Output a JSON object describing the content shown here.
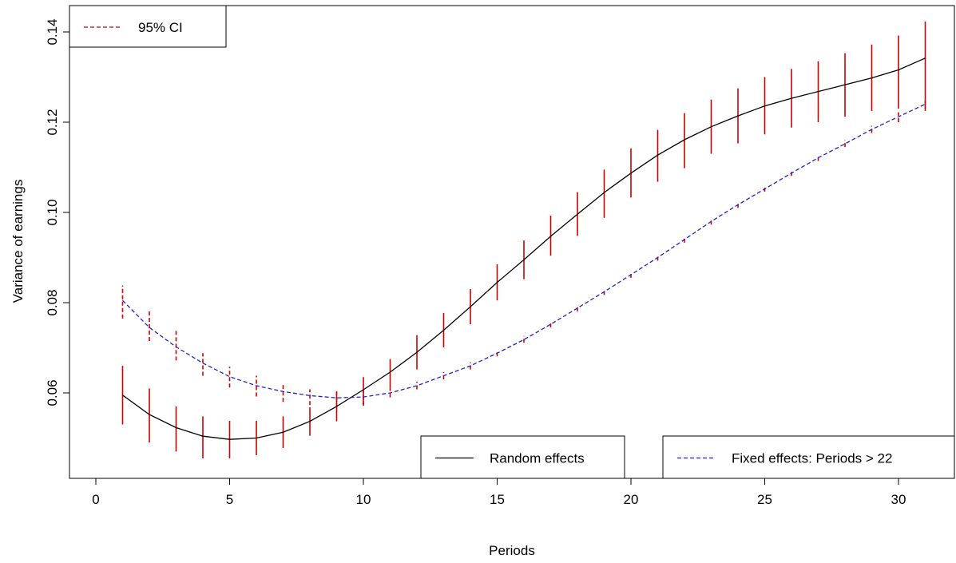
{
  "chart_data": {
    "type": "line",
    "title": "",
    "xlabel": "Periods",
    "ylabel": "Variance of earnings",
    "xlim": [
      0,
      32
    ],
    "ylim": [
      0.041,
      0.144
    ],
    "x_ticks": [
      0,
      5,
      10,
      15,
      20,
      25,
      30
    ],
    "y_ticks": [
      0.06,
      0.08,
      0.1,
      0.12,
      0.14
    ],
    "x_tick_labels": [
      "0",
      "5",
      "10",
      "15",
      "20",
      "25",
      "30"
    ],
    "y_tick_labels": [
      "0.06",
      "0.08",
      "0.10",
      "0.12",
      "0.14"
    ],
    "grid": false,
    "x": [
      1,
      2,
      3,
      4,
      5,
      6,
      7,
      8,
      9,
      10,
      11,
      12,
      13,
      14,
      15,
      16,
      17,
      18,
      19,
      20,
      21,
      22,
      23,
      24,
      25,
      26,
      27,
      28,
      29,
      30,
      31
    ],
    "series": [
      {
        "name": "Random effects",
        "color": "#000000",
        "dash": "solid",
        "values": [
          0.0595,
          0.0552,
          0.0523,
          0.0504,
          0.0497,
          0.05,
          0.0513,
          0.0537,
          0.057,
          0.0607,
          0.0646,
          0.069,
          0.0739,
          0.0791,
          0.0845,
          0.0895,
          0.0947,
          0.0996,
          0.1044,
          0.1087,
          0.1127,
          0.1161,
          0.119,
          0.1214,
          0.1236,
          0.1253,
          0.1268,
          0.1283,
          0.1298,
          0.1316,
          0.1342
        ],
        "ci_lower": [
          0.053,
          0.049,
          0.047,
          0.0455,
          0.0455,
          0.0462,
          0.0478,
          0.0505,
          0.0537,
          0.0573,
          0.0612,
          0.0652,
          0.0701,
          0.0752,
          0.0805,
          0.0852,
          0.0904,
          0.0948,
          0.0988,
          0.1033,
          0.1068,
          0.1098,
          0.113,
          0.1153,
          0.1173,
          0.1188,
          0.12,
          0.1212,
          0.1225,
          0.123,
          0.123
        ],
        "ci_upper": [
          0.066,
          0.061,
          0.057,
          0.0548,
          0.0538,
          0.0538,
          0.0548,
          0.0568,
          0.0603,
          0.0635,
          0.0675,
          0.0728,
          0.0777,
          0.083,
          0.0885,
          0.0938,
          0.0993,
          0.1045,
          0.1095,
          0.1142,
          0.1183,
          0.122,
          0.125,
          0.1275,
          0.13,
          0.1318,
          0.1335,
          0.1353,
          0.1372,
          0.1392,
          0.1423
        ]
      },
      {
        "name": "Fixed effects: Periods > 22",
        "color": "#2222cc",
        "dash": "dashed",
        "values": [
          0.0805,
          0.0745,
          0.0702,
          0.0666,
          0.0636,
          0.0616,
          0.0603,
          0.0594,
          0.0589,
          0.0591,
          0.06,
          0.0616,
          0.0638,
          0.066,
          0.0688,
          0.0718,
          0.0752,
          0.0788,
          0.0824,
          0.0862,
          0.09,
          0.094,
          0.098,
          0.1017,
          0.1052,
          0.1087,
          0.1121,
          0.1152,
          0.1184,
          0.1212,
          0.124
        ],
        "ci_lower": [
          0.0765,
          0.0715,
          0.0672,
          0.0638,
          0.0612,
          0.0592,
          0.058,
          0.0573,
          0.0568,
          0.0572,
          0.059,
          0.0608,
          0.063,
          0.0652,
          0.0681,
          0.0711,
          0.0745,
          0.0781,
          0.0817,
          0.0855,
          0.0893,
          0.0933,
          0.0973,
          0.101,
          0.1046,
          0.1081,
          0.1114,
          0.1145,
          0.1176,
          0.12,
          0.1225
        ],
        "ci_upper": [
          0.0838,
          0.0783,
          0.0738,
          0.0688,
          0.0658,
          0.0638,
          0.0618,
          0.0608,
          0.0603,
          0.0605,
          0.0612,
          0.0625,
          0.0646,
          0.0668,
          0.0695,
          0.0726,
          0.0759,
          0.0795,
          0.0831,
          0.0869,
          0.0907,
          0.0947,
          0.0987,
          0.1024,
          0.1059,
          0.1094,
          0.1128,
          0.116,
          0.1192,
          0.1222,
          0.125
        ]
      }
    ],
    "ci_color": "#cc0000",
    "legends": [
      {
        "placement": "top-left",
        "items": [
          {
            "label": "95% CI",
            "color": "#cc0000",
            "dash": "dashed"
          }
        ]
      },
      {
        "placement": "bottom-center",
        "items": [
          {
            "label": "Random effects",
            "color": "#000000",
            "dash": "solid"
          }
        ]
      },
      {
        "placement": "bottom-right",
        "items": [
          {
            "label": "Fixed effects: Periods > 22",
            "color": "#2222cc",
            "dash": "dashed"
          }
        ]
      }
    ]
  }
}
